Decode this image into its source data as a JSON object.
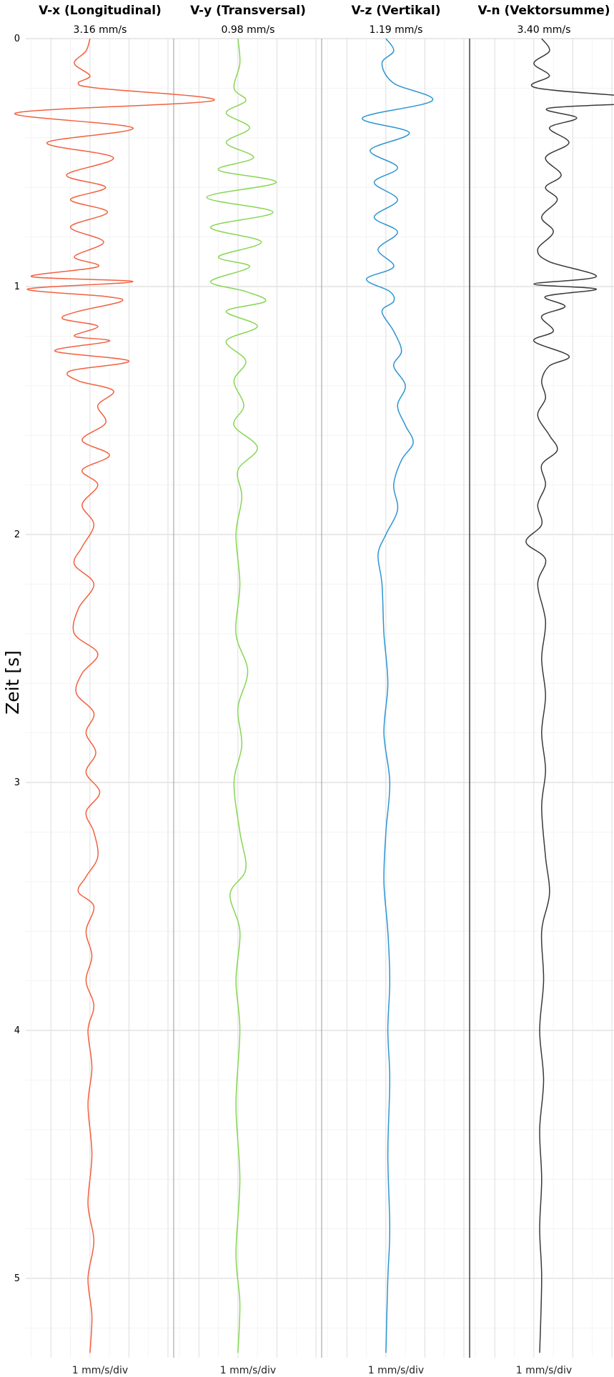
{
  "chart_data": {
    "type": "line",
    "ylabel": "Zeit [s]",
    "y_ticks": [
      "0",
      "1",
      "2",
      "3",
      "4",
      "5"
    ],
    "ylim": [
      0,
      5.3
    ],
    "x_range_per_channel": [
      -1.5,
      2
    ],
    "grid": true,
    "legend": "none",
    "channels": [
      {
        "name": "V-x (Longitudinal)",
        "peak": "3.16 mm/s",
        "scale": "1 mm/s/div",
        "color": "#f2603f",
        "values": [
          {
            "t": 0.0,
            "v": 0.0
          },
          {
            "t": 0.05,
            "v": -0.1
          },
          {
            "t": 0.1,
            "v": -0.4
          },
          {
            "t": 0.15,
            "v": 0.0
          },
          {
            "t": 0.18,
            "v": -0.3
          },
          {
            "t": 0.2,
            "v": 0.2
          },
          {
            "t": 0.25,
            "v": 3.16
          },
          {
            "t": 0.3,
            "v": -1.9
          },
          {
            "t": 0.36,
            "v": 1.1
          },
          {
            "t": 0.42,
            "v": -1.1
          },
          {
            "t": 0.48,
            "v": 0.6
          },
          {
            "t": 0.55,
            "v": -0.6
          },
          {
            "t": 0.6,
            "v": 0.4
          },
          {
            "t": 0.65,
            "v": -0.5
          },
          {
            "t": 0.7,
            "v": 0.45
          },
          {
            "t": 0.76,
            "v": -0.5
          },
          {
            "t": 0.82,
            "v": 0.35
          },
          {
            "t": 0.88,
            "v": -0.4
          },
          {
            "t": 0.92,
            "v": 0.2
          },
          {
            "t": 0.96,
            "v": -1.5
          },
          {
            "t": 0.98,
            "v": 1.1
          },
          {
            "t": 1.01,
            "v": -1.6
          },
          {
            "t": 1.04,
            "v": 0.4
          },
          {
            "t": 1.06,
            "v": 0.8
          },
          {
            "t": 1.1,
            "v": -0.3
          },
          {
            "t": 1.13,
            "v": -0.7
          },
          {
            "t": 1.16,
            "v": 0.2
          },
          {
            "t": 1.2,
            "v": -0.4
          },
          {
            "t": 1.22,
            "v": 0.5
          },
          {
            "t": 1.26,
            "v": -0.9
          },
          {
            "t": 1.3,
            "v": 1.0
          },
          {
            "t": 1.34,
            "v": -0.5
          },
          {
            "t": 1.38,
            "v": -0.3
          },
          {
            "t": 1.42,
            "v": 0.6
          },
          {
            "t": 1.48,
            "v": 0.2
          },
          {
            "t": 1.55,
            "v": 0.4
          },
          {
            "t": 1.62,
            "v": -0.2
          },
          {
            "t": 1.68,
            "v": 0.5
          },
          {
            "t": 1.74,
            "v": -0.2
          },
          {
            "t": 1.8,
            "v": 0.2
          },
          {
            "t": 1.88,
            "v": -0.2
          },
          {
            "t": 1.96,
            "v": 0.1
          },
          {
            "t": 2.05,
            "v": -0.2
          },
          {
            "t": 2.12,
            "v": -0.4
          },
          {
            "t": 2.2,
            "v": 0.1
          },
          {
            "t": 2.3,
            "v": -0.3
          },
          {
            "t": 2.4,
            "v": -0.4
          },
          {
            "t": 2.48,
            "v": 0.2
          },
          {
            "t": 2.56,
            "v": -0.2
          },
          {
            "t": 2.64,
            "v": -0.35
          },
          {
            "t": 2.72,
            "v": 0.1
          },
          {
            "t": 2.8,
            "v": -0.1
          },
          {
            "t": 2.88,
            "v": 0.15
          },
          {
            "t": 2.96,
            "v": -0.1
          },
          {
            "t": 3.04,
            "v": 0.25
          },
          {
            "t": 3.12,
            "v": -0.1
          },
          {
            "t": 3.2,
            "v": 0.1
          },
          {
            "t": 3.3,
            "v": 0.2
          },
          {
            "t": 3.38,
            "v": -0.1
          },
          {
            "t": 3.44,
            "v": -0.3
          },
          {
            "t": 3.5,
            "v": 0.1
          },
          {
            "t": 3.6,
            "v": -0.1
          },
          {
            "t": 3.7,
            "v": 0.05
          },
          {
            "t": 3.8,
            "v": -0.1
          },
          {
            "t": 3.9,
            "v": 0.1
          },
          {
            "t": 4.0,
            "v": -0.05
          },
          {
            "t": 4.15,
            "v": 0.05
          },
          {
            "t": 4.3,
            "v": -0.05
          },
          {
            "t": 4.5,
            "v": 0.05
          },
          {
            "t": 4.7,
            "v": -0.05
          },
          {
            "t": 4.85,
            "v": 0.1
          },
          {
            "t": 5.0,
            "v": -0.05
          },
          {
            "t": 5.15,
            "v": 0.05
          },
          {
            "t": 5.3,
            "v": 0.0
          }
        ]
      },
      {
        "name": "V-y (Transversal)",
        "peak": "0.98 mm/s",
        "scale": "1 mm/s/div",
        "color": "#86d652",
        "values": [
          {
            "t": 0.0,
            "v": 0.0
          },
          {
            "t": 0.1,
            "v": 0.05
          },
          {
            "t": 0.2,
            "v": -0.1
          },
          {
            "t": 0.25,
            "v": 0.2
          },
          {
            "t": 0.3,
            "v": -0.3
          },
          {
            "t": 0.36,
            "v": 0.3
          },
          {
            "t": 0.42,
            "v": -0.3
          },
          {
            "t": 0.48,
            "v": 0.4
          },
          {
            "t": 0.53,
            "v": -0.5
          },
          {
            "t": 0.58,
            "v": 0.98
          },
          {
            "t": 0.64,
            "v": -0.8
          },
          {
            "t": 0.7,
            "v": 0.9
          },
          {
            "t": 0.76,
            "v": -0.7
          },
          {
            "t": 0.82,
            "v": 0.6
          },
          {
            "t": 0.88,
            "v": -0.5
          },
          {
            "t": 0.92,
            "v": 0.3
          },
          {
            "t": 0.98,
            "v": -0.7
          },
          {
            "t": 1.02,
            "v": 0.2
          },
          {
            "t": 1.06,
            "v": 0.7
          },
          {
            "t": 1.1,
            "v": -0.3
          },
          {
            "t": 1.16,
            "v": 0.5
          },
          {
            "t": 1.22,
            "v": -0.3
          },
          {
            "t": 1.3,
            "v": 0.2
          },
          {
            "t": 1.38,
            "v": -0.1
          },
          {
            "t": 1.48,
            "v": 0.15
          },
          {
            "t": 1.56,
            "v": -0.1
          },
          {
            "t": 1.65,
            "v": 0.5
          },
          {
            "t": 1.74,
            "v": 0.0
          },
          {
            "t": 1.85,
            "v": 0.1
          },
          {
            "t": 2.0,
            "v": -0.05
          },
          {
            "t": 2.2,
            "v": 0.05
          },
          {
            "t": 2.4,
            "v": -0.05
          },
          {
            "t": 2.55,
            "v": 0.25
          },
          {
            "t": 2.7,
            "v": 0.0
          },
          {
            "t": 2.85,
            "v": 0.1
          },
          {
            "t": 3.0,
            "v": -0.1
          },
          {
            "t": 3.2,
            "v": 0.05
          },
          {
            "t": 3.35,
            "v": 0.2
          },
          {
            "t": 3.45,
            "v": -0.2
          },
          {
            "t": 3.6,
            "v": 0.05
          },
          {
            "t": 3.8,
            "v": -0.05
          },
          {
            "t": 4.0,
            "v": 0.05
          },
          {
            "t": 4.3,
            "v": -0.05
          },
          {
            "t": 4.6,
            "v": 0.05
          },
          {
            "t": 4.9,
            "v": -0.05
          },
          {
            "t": 5.1,
            "v": 0.05
          },
          {
            "t": 5.3,
            "v": 0.0
          }
        ]
      },
      {
        "name": "V-z (Vertikal)",
        "peak": "1.19 mm/s",
        "scale": "1 mm/s/div",
        "color": "#2c95d2",
        "values": [
          {
            "t": 0.0,
            "v": 0.0
          },
          {
            "t": 0.05,
            "v": 0.2
          },
          {
            "t": 0.1,
            "v": -0.1
          },
          {
            "t": 0.18,
            "v": 0.2
          },
          {
            "t": 0.25,
            "v": 1.19
          },
          {
            "t": 0.32,
            "v": -0.6
          },
          {
            "t": 0.38,
            "v": 0.6
          },
          {
            "t": 0.45,
            "v": -0.4
          },
          {
            "t": 0.52,
            "v": 0.3
          },
          {
            "t": 0.58,
            "v": -0.3
          },
          {
            "t": 0.65,
            "v": 0.3
          },
          {
            "t": 0.72,
            "v": -0.3
          },
          {
            "t": 0.78,
            "v": 0.3
          },
          {
            "t": 0.85,
            "v": -0.2
          },
          {
            "t": 0.92,
            "v": 0.2
          },
          {
            "t": 0.97,
            "v": -0.5
          },
          {
            "t": 1.02,
            "v": 0.1
          },
          {
            "t": 1.06,
            "v": 0.2
          },
          {
            "t": 1.1,
            "v": -0.1
          },
          {
            "t": 1.18,
            "v": 0.2
          },
          {
            "t": 1.26,
            "v": 0.4
          },
          {
            "t": 1.32,
            "v": 0.2
          },
          {
            "t": 1.4,
            "v": 0.5
          },
          {
            "t": 1.48,
            "v": 0.3
          },
          {
            "t": 1.56,
            "v": 0.5
          },
          {
            "t": 1.63,
            "v": 0.7
          },
          {
            "t": 1.7,
            "v": 0.4
          },
          {
            "t": 1.8,
            "v": 0.2
          },
          {
            "t": 1.9,
            "v": 0.3
          },
          {
            "t": 2.0,
            "v": 0.0
          },
          {
            "t": 2.08,
            "v": -0.2
          },
          {
            "t": 2.2,
            "v": -0.1
          },
          {
            "t": 2.4,
            "v": -0.05
          },
          {
            "t": 2.6,
            "v": 0.05
          },
          {
            "t": 2.8,
            "v": -0.05
          },
          {
            "t": 3.0,
            "v": 0.1
          },
          {
            "t": 3.2,
            "v": 0.0
          },
          {
            "t": 3.4,
            "v": -0.05
          },
          {
            "t": 3.6,
            "v": 0.05
          },
          {
            "t": 3.8,
            "v": 0.1
          },
          {
            "t": 4.0,
            "v": 0.05
          },
          {
            "t": 4.2,
            "v": 0.1
          },
          {
            "t": 4.5,
            "v": 0.05
          },
          {
            "t": 4.8,
            "v": 0.1
          },
          {
            "t": 5.0,
            "v": 0.05
          },
          {
            "t": 5.3,
            "v": 0.0
          }
        ]
      },
      {
        "name": "V-n (Vektorsumme)",
        "peak": "3.40 mm/s",
        "scale": "1 mm/s/div",
        "color": "#3a3a3a",
        "values": [
          {
            "t": 0.0,
            "v": 0.2
          },
          {
            "t": 0.05,
            "v": 0.4
          },
          {
            "t": 0.1,
            "v": 0.0
          },
          {
            "t": 0.15,
            "v": 0.4
          },
          {
            "t": 0.2,
            "v": 0.1
          },
          {
            "t": 0.25,
            "v": 3.4
          },
          {
            "t": 0.28,
            "v": 0.4
          },
          {
            "t": 0.32,
            "v": 1.1
          },
          {
            "t": 0.36,
            "v": 0.4
          },
          {
            "t": 0.42,
            "v": 0.9
          },
          {
            "t": 0.48,
            "v": 0.3
          },
          {
            "t": 0.55,
            "v": 0.7
          },
          {
            "t": 0.6,
            "v": 0.3
          },
          {
            "t": 0.65,
            "v": 0.6
          },
          {
            "t": 0.72,
            "v": 0.2
          },
          {
            "t": 0.78,
            "v": 0.5
          },
          {
            "t": 0.85,
            "v": 0.1
          },
          {
            "t": 0.9,
            "v": 0.4
          },
          {
            "t": 0.96,
            "v": 1.6
          },
          {
            "t": 0.99,
            "v": 0.0
          },
          {
            "t": 1.01,
            "v": 1.6
          },
          {
            "t": 1.04,
            "v": 0.3
          },
          {
            "t": 1.08,
            "v": 0.8
          },
          {
            "t": 1.12,
            "v": 0.2
          },
          {
            "t": 1.18,
            "v": 0.5
          },
          {
            "t": 1.22,
            "v": 0.0
          },
          {
            "t": 1.28,
            "v": 0.9
          },
          {
            "t": 1.32,
            "v": 0.4
          },
          {
            "t": 1.38,
            "v": 0.2
          },
          {
            "t": 1.45,
            "v": 0.3
          },
          {
            "t": 1.52,
            "v": 0.1
          },
          {
            "t": 1.6,
            "v": 0.4
          },
          {
            "t": 1.66,
            "v": 0.6
          },
          {
            "t": 1.72,
            "v": 0.2
          },
          {
            "t": 1.8,
            "v": 0.3
          },
          {
            "t": 1.88,
            "v": 0.1
          },
          {
            "t": 1.96,
            "v": 0.2
          },
          {
            "t": 2.03,
            "v": -0.2
          },
          {
            "t": 2.1,
            "v": 0.3
          },
          {
            "t": 2.2,
            "v": 0.1
          },
          {
            "t": 2.35,
            "v": 0.3
          },
          {
            "t": 2.5,
            "v": 0.2
          },
          {
            "t": 2.65,
            "v": 0.3
          },
          {
            "t": 2.8,
            "v": 0.2
          },
          {
            "t": 2.95,
            "v": 0.3
          },
          {
            "t": 3.1,
            "v": 0.2
          },
          {
            "t": 3.3,
            "v": 0.3
          },
          {
            "t": 3.45,
            "v": 0.4
          },
          {
            "t": 3.6,
            "v": 0.2
          },
          {
            "t": 3.8,
            "v": 0.25
          },
          {
            "t": 4.0,
            "v": 0.15
          },
          {
            "t": 4.2,
            "v": 0.25
          },
          {
            "t": 4.4,
            "v": 0.15
          },
          {
            "t": 4.6,
            "v": 0.2
          },
          {
            "t": 4.8,
            "v": 0.15
          },
          {
            "t": 5.0,
            "v": 0.2
          },
          {
            "t": 5.3,
            "v": 0.15
          }
        ]
      }
    ]
  }
}
